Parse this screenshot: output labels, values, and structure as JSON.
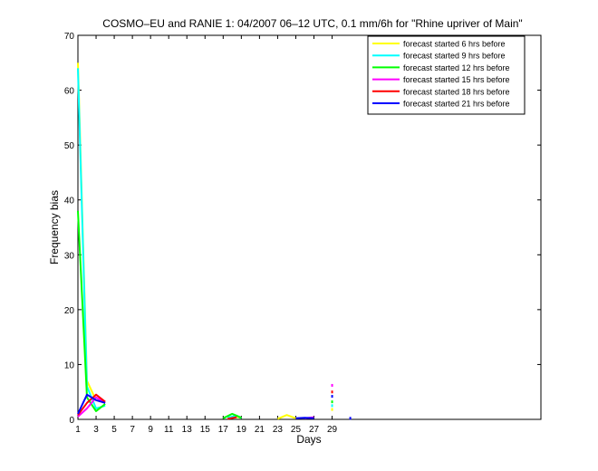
{
  "chart_data": {
    "type": "line",
    "title": "COSMO–EU and RANIE 1: 04/2007 06–12 UTC, 0.1 mm/6h for \"Rhine upriver of Main\"",
    "xlabel": "Days",
    "ylabel": "Frequency bias",
    "xlim": [
      1,
      52
    ],
    "ylim": [
      0,
      70
    ],
    "xticks": [
      1,
      3,
      5,
      7,
      9,
      11,
      13,
      15,
      17,
      19,
      21,
      23,
      25,
      27,
      29
    ],
    "yticks": [
      0,
      10,
      20,
      30,
      40,
      50,
      60,
      70
    ],
    "grid": false,
    "legend_position": "top-right",
    "series": [
      {
        "name": "forecast started 6 hrs before",
        "color": "#ffff00",
        "segments": [
          [
            [
              1,
              65
            ],
            [
              2,
              7
            ],
            [
              3,
              3.5
            ],
            [
              4,
              3
            ]
          ],
          [
            [
              17.5,
              0.2
            ],
            [
              18.5,
              0.5
            ],
            [
              19,
              0.2
            ]
          ],
          [
            [
              23,
              0.1
            ],
            [
              24,
              0.8
            ],
            [
              25,
              0.2
            ]
          ]
        ],
        "dots": [
          [
            29,
            1.8
          ]
        ]
      },
      {
        "name": "forecast started 9 hrs before",
        "color": "#00ffff",
        "segments": [
          [
            [
              1,
              64
            ],
            [
              2,
              6
            ],
            [
              3,
              2
            ],
            [
              4,
              2.5
            ]
          ],
          [
            [
              17.5,
              0.3
            ],
            [
              18.5,
              0.7
            ],
            [
              19,
              0.2
            ]
          ]
        ],
        "dots": [
          [
            29,
            2.5
          ]
        ]
      },
      {
        "name": "forecast started 12 hrs before",
        "color": "#00ff00",
        "segments": [
          [
            [
              1,
              38
            ],
            [
              2,
              4
            ],
            [
              3,
              1.5
            ],
            [
              4,
              2.8
            ]
          ],
          [
            [
              17,
              0.2
            ],
            [
              18,
              1
            ],
            [
              19,
              0.3
            ]
          ]
        ],
        "dots": [
          [
            29,
            3.2
          ]
        ]
      },
      {
        "name": "forecast started 15 hrs before",
        "color": "#ff00ff",
        "segments": [
          [
            [
              1,
              0.5
            ],
            [
              2,
              2
            ],
            [
              3,
              4
            ],
            [
              4,
              3
            ]
          ],
          [
            [
              26,
              0.2
            ],
            [
              27,
              0.4
            ]
          ]
        ],
        "dots": [
          [
            29,
            6.2
          ]
        ]
      },
      {
        "name": "forecast started 18 hrs before",
        "color": "#ff0000",
        "segments": [
          [
            [
              1,
              0.8
            ],
            [
              2,
              3
            ],
            [
              3,
              4.5
            ],
            [
              4,
              3.2
            ]
          ],
          [
            [
              17.5,
              0.1
            ],
            [
              18.5,
              0.4
            ]
          ]
        ],
        "dots": [
          [
            29,
            5
          ]
        ]
      },
      {
        "name": "forecast started 21 hrs before",
        "color": "#0000ff",
        "segments": [
          [
            [
              1,
              1
            ],
            [
              2,
              4.5
            ],
            [
              3,
              3.5
            ],
            [
              4,
              3
            ]
          ],
          [
            [
              25,
              0.2
            ],
            [
              26,
              0.3
            ],
            [
              27,
              0.2
            ]
          ]
        ],
        "dots": [
          [
            29,
            4.2
          ],
          [
            31,
            0.2
          ]
        ]
      }
    ]
  }
}
